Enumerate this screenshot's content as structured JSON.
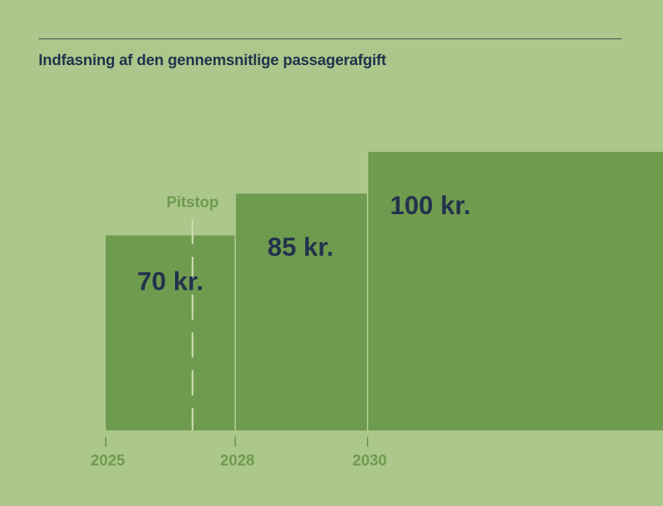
{
  "title": "Indfasning af den gennemsnitlige passagerafgift",
  "colors": {
    "background": "#abc78b",
    "bar": "#6f9b4f",
    "text_dark": "#23334d",
    "accent_light": "#cbdcaf"
  },
  "chart_data": {
    "type": "bar",
    "title": "Indfasning af den gennemsnitlige passagerafgift",
    "xlabel": "",
    "ylabel": "",
    "ylim": [
      0,
      130
    ],
    "x_ticks": [
      "2025",
      "2028",
      "2030"
    ],
    "bars": [
      {
        "start": 2025,
        "end": 2028,
        "value": 70,
        "label": "70 kr."
      },
      {
        "start": 2028,
        "end": 2030,
        "value": 85,
        "label": "85 kr."
      },
      {
        "start": 2030,
        "end": null,
        "value": 100,
        "label": "100 kr."
      }
    ],
    "marker": {
      "label": "Pitstop",
      "position": "between 2025 and 2028"
    },
    "grid": false,
    "legend": "none"
  }
}
